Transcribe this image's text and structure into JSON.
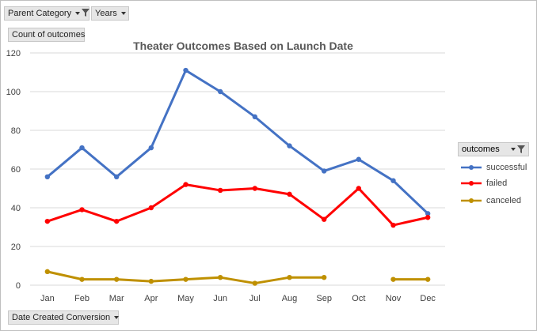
{
  "pivot": {
    "filters": [
      {
        "label": "Parent Category",
        "filtered": true
      },
      {
        "label": "Years",
        "filtered": false
      }
    ],
    "values_label": "Count of outcomes",
    "axis_field": "Date Created Conversion",
    "legend_field": "outcomes"
  },
  "chart_data": {
    "type": "line",
    "title": "Theater Outcomes Based on Launch Date",
    "xlabel": "",
    "ylabel": "",
    "categories": [
      "Jan",
      "Feb",
      "Mar",
      "Apr",
      "May",
      "Jun",
      "Jul",
      "Aug",
      "Sep",
      "Oct",
      "Nov",
      "Dec"
    ],
    "ylim": [
      0,
      120
    ],
    "yticks": [
      0,
      20,
      40,
      60,
      80,
      100,
      120
    ],
    "grid": true,
    "legend_position": "right",
    "series": [
      {
        "name": "successful",
        "color": "#4472c4",
        "values": [
          56,
          71,
          56,
          71,
          111,
          100,
          87,
          72,
          59,
          65,
          54,
          37
        ]
      },
      {
        "name": "failed",
        "color": "#ff0000",
        "values": [
          33,
          39,
          33,
          40,
          52,
          49,
          50,
          47,
          34,
          50,
          31,
          35
        ]
      },
      {
        "name": "canceled",
        "color": "#bf9000",
        "values": [
          7,
          3,
          3,
          2,
          3,
          4,
          1,
          4,
          4,
          null,
          3,
          3
        ]
      }
    ]
  }
}
